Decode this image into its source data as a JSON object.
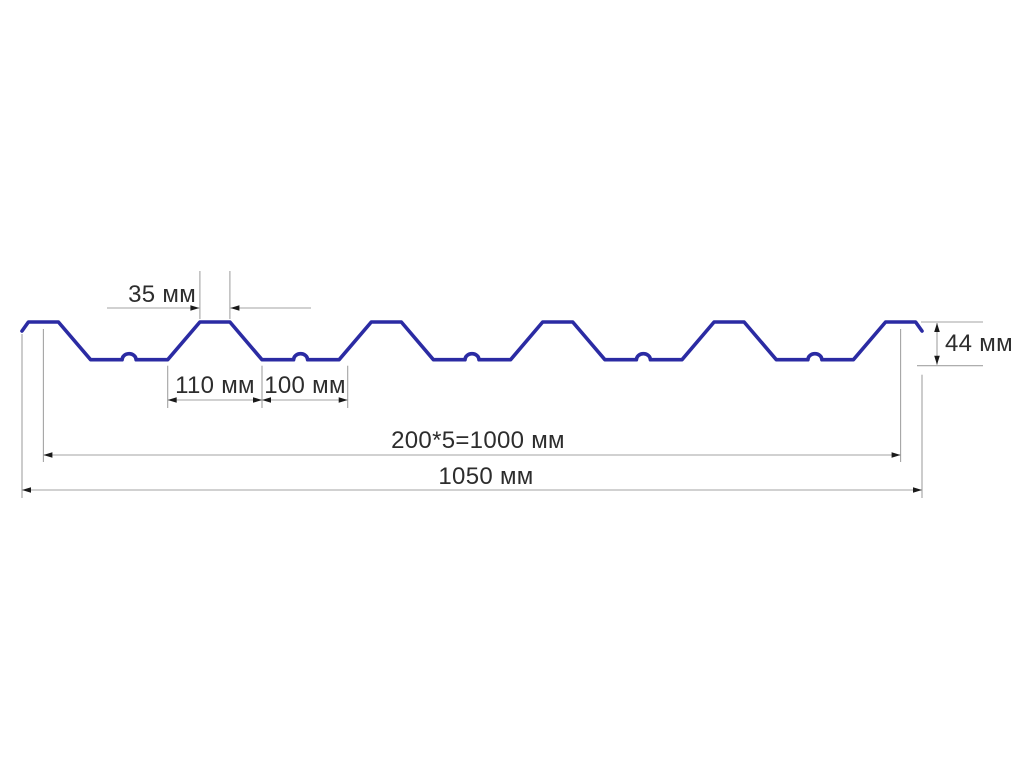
{
  "diagram": {
    "kind": "profiled-sheet-cross-section",
    "labels": {
      "top_flat": "35 мм",
      "rib_bottom": "110 мм",
      "valley": "100 мм",
      "height": "44 мм",
      "pitch_total": "200*5=1000 мм",
      "overall_width": "1050 мм"
    },
    "geometry_mm": {
      "overall_width": 1050,
      "profile_height": 44,
      "rib_top_flat": 35,
      "rib_bottom_width": 110,
      "valley_width": 100,
      "rib_pitch": 200,
      "rib_count": 6,
      "pitch_total": 1000
    },
    "colors": {
      "profile": "#2b2ba3",
      "dim_line": "#a3a3a3",
      "arrow": "#1a1a1a",
      "label_text": "#2d2d2d",
      "background": "#ffffff"
    }
  }
}
